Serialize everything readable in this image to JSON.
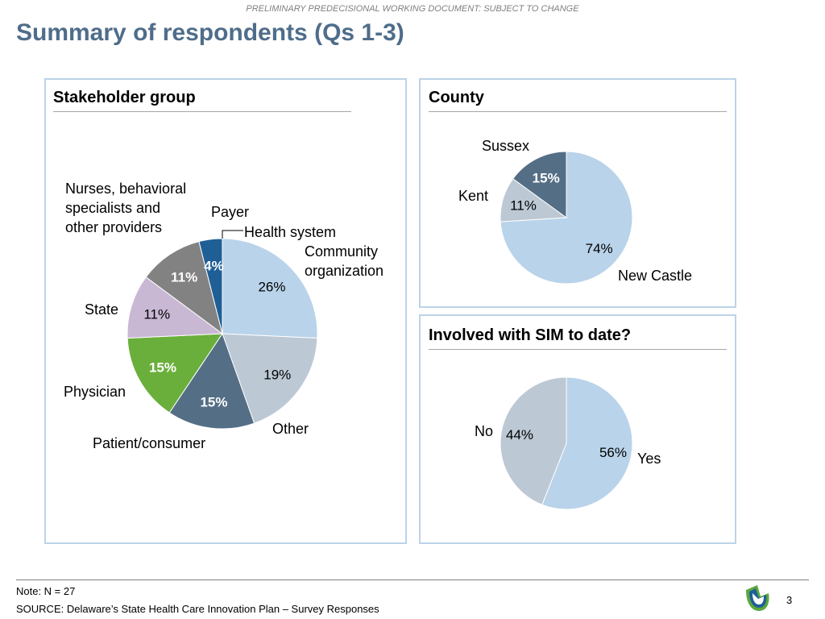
{
  "header": {
    "banner": "PRELIMINARY PREDECISIONAL WORKING DOCUMENT: SUBJECT TO CHANGE",
    "title": "Summary of respondents (Qs 1-3)"
  },
  "panels": {
    "stakeholder_heading": "Stakeholder group",
    "county_heading": "County",
    "sim_heading": "Involved with SIM to date?"
  },
  "footer": {
    "note": "Note: N = 27",
    "source": "SOURCE: Delaware’s State Health Care Innovation Plan – Survey Responses",
    "page_number": "3"
  },
  "chart_data": [
    {
      "type": "pie",
      "title": "Stakeholder group",
      "slices": [
        {
          "label": "Community organization",
          "value": 26,
          "display": "26%",
          "color": "#b9d3ea",
          "text_color": "#000000"
        },
        {
          "label": "Other",
          "value": 19,
          "display": "19%",
          "color": "#bcc8d4",
          "text_color": "#000000"
        },
        {
          "label": "Patient/consumer",
          "value": 15,
          "display": "15%",
          "color": "#546e85",
          "text_color": "#ffffff"
        },
        {
          "label": "Physician",
          "value": 15,
          "display": "15%",
          "color": "#6aaf3c",
          "text_color": "#ffffff"
        },
        {
          "label": "State",
          "value": 11,
          "display": "11%",
          "color": "#c9b8d4",
          "text_color": "#000000"
        },
        {
          "label": "Nurses, behavioral specialists and other providers",
          "value": 11,
          "display": "11%",
          "color": "#828282",
          "text_color": "#ffffff"
        },
        {
          "label": "Payer",
          "value": 4,
          "display": "4%",
          "color": "#1f5f96",
          "text_color": "#ffffff"
        },
        {
          "label": "Health system",
          "value": 0,
          "display": "",
          "color": "#ffffff",
          "text_color": "#000000"
        }
      ],
      "category_labels": {
        "nurses_lines": [
          "Nurses, behavioral",
          "specialists and",
          "other providers"
        ],
        "payer": "Payer",
        "health_system": "Health system",
        "community_lines": [
          "Community",
          "organization"
        ],
        "state": "State",
        "physician": "Physician",
        "patient": "Patient/consumer",
        "other": "Other"
      }
    },
    {
      "type": "pie",
      "title": "County",
      "slices": [
        {
          "label": "New Castle",
          "value": 74,
          "display": "74%",
          "color": "#b9d3ea",
          "text_color": "#000000"
        },
        {
          "label": "Kent",
          "value": 11,
          "display": "11%",
          "color": "#bcc8d4",
          "text_color": "#000000"
        },
        {
          "label": "Sussex",
          "value": 15,
          "display": "15%",
          "color": "#546e85",
          "text_color": "#ffffff"
        }
      ]
    },
    {
      "type": "pie",
      "title": "Involved with SIM to date?",
      "slices": [
        {
          "label": "Yes",
          "value": 56,
          "display": "56%",
          "color": "#b9d3ea",
          "text_color": "#000000"
        },
        {
          "label": "No",
          "value": 44,
          "display": "44%",
          "color": "#bcc8d4",
          "text_color": "#000000"
        }
      ]
    }
  ]
}
